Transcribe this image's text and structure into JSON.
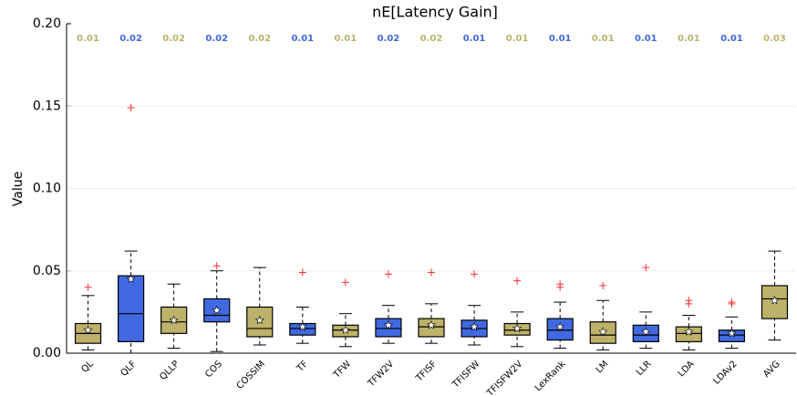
{
  "chart_data": {
    "type": "box",
    "title": "nE[Latency Gain]",
    "y_label": "Value",
    "ylim": [
      0,
      0.2
    ],
    "yticks": [
      {
        "value": 0,
        "label": "0.00"
      },
      0.05,
      {
        "value": 0.1,
        "label": "0.10"
      },
      0.15,
      {
        "value": 0.2,
        "label": "0.20"
      }
    ],
    "grid": true,
    "categories": [
      "QL",
      "QLF",
      "QLLP",
      "COS",
      "COSSIM",
      "TF",
      "TFW",
      "TFW2V",
      "TFISF",
      "TFISFW",
      "TFISFW2V",
      "LexRank",
      "LM",
      "LLR",
      "LDA",
      "LDAv2",
      "AVG"
    ],
    "boxes": [
      {
        "whislo": 0.002,
        "q1": 0.006,
        "med": 0.012,
        "q3": 0.018,
        "whishi": 0.035,
        "mean": 0.014,
        "fliers": [
          0.04
        ],
        "top_label": 0.01,
        "color": "#bdb26a"
      },
      {
        "whislo": 0.0,
        "q1": 0.007,
        "med": 0.024,
        "q3": 0.047,
        "whishi": 0.062,
        "mean": 0.045,
        "fliers": [
          0.149
        ],
        "top_label": 0.02,
        "color": "#4169e1"
      },
      {
        "whislo": 0.003,
        "q1": 0.012,
        "med": 0.019,
        "q3": 0.028,
        "whishi": 0.042,
        "mean": 0.02,
        "fliers": [],
        "top_label": 0.02,
        "color": "#bdb26a"
      },
      {
        "whislo": 0.001,
        "q1": 0.019,
        "med": 0.023,
        "q3": 0.033,
        "whishi": 0.05,
        "mean": 0.026,
        "fliers": [
          0.053
        ],
        "top_label": 0.02,
        "color": "#4169e1"
      },
      {
        "whislo": 0.005,
        "q1": 0.01,
        "med": 0.015,
        "q3": 0.028,
        "whishi": 0.052,
        "mean": 0.02,
        "fliers": [],
        "top_label": 0.02,
        "color": "#bdb26a"
      },
      {
        "whislo": 0.006,
        "q1": 0.011,
        "med": 0.015,
        "q3": 0.018,
        "whishi": 0.028,
        "mean": 0.016,
        "fliers": [
          0.049
        ],
        "top_label": 0.01,
        "color": "#4169e1"
      },
      {
        "whislo": 0.004,
        "q1": 0.01,
        "med": 0.014,
        "q3": 0.017,
        "whishi": 0.024,
        "mean": 0.014,
        "fliers": [
          0.043
        ],
        "top_label": 0.01,
        "color": "#bdb26a"
      },
      {
        "whislo": 0.006,
        "q1": 0.01,
        "med": 0.015,
        "q3": 0.021,
        "whishi": 0.029,
        "mean": 0.017,
        "fliers": [
          0.048
        ],
        "top_label": 0.02,
        "color": "#4169e1"
      },
      {
        "whislo": 0.006,
        "q1": 0.01,
        "med": 0.016,
        "q3": 0.021,
        "whishi": 0.03,
        "mean": 0.017,
        "fliers": [
          0.049
        ],
        "top_label": 0.02,
        "color": "#bdb26a"
      },
      {
        "whislo": 0.005,
        "q1": 0.01,
        "med": 0.015,
        "q3": 0.02,
        "whishi": 0.029,
        "mean": 0.016,
        "fliers": [
          0.048
        ],
        "top_label": 0.01,
        "color": "#4169e1"
      },
      {
        "whislo": 0.004,
        "q1": 0.011,
        "med": 0.014,
        "q3": 0.018,
        "whishi": 0.025,
        "mean": 0.015,
        "fliers": [
          0.044
        ],
        "top_label": 0.01,
        "color": "#bdb26a"
      },
      {
        "whislo": 0.003,
        "q1": 0.008,
        "med": 0.014,
        "q3": 0.021,
        "whishi": 0.031,
        "mean": 0.016,
        "fliers": [
          0.042,
          0.04
        ],
        "top_label": 0.01,
        "color": "#4169e1"
      },
      {
        "whislo": 0.002,
        "q1": 0.006,
        "med": 0.011,
        "q3": 0.019,
        "whishi": 0.032,
        "mean": 0.013,
        "fliers": [
          0.041
        ],
        "top_label": 0.01,
        "color": "#bdb26a"
      },
      {
        "whislo": 0.003,
        "q1": 0.007,
        "med": 0.011,
        "q3": 0.017,
        "whishi": 0.025,
        "mean": 0.013,
        "fliers": [
          0.052
        ],
        "top_label": 0.01,
        "color": "#4169e1"
      },
      {
        "whislo": 0.002,
        "q1": 0.007,
        "med": 0.012,
        "q3": 0.016,
        "whishi": 0.023,
        "mean": 0.013,
        "fliers": [
          0.032,
          0.03
        ],
        "top_label": 0.01,
        "color": "#bdb26a"
      },
      {
        "whislo": 0.003,
        "q1": 0.007,
        "med": 0.011,
        "q3": 0.014,
        "whishi": 0.022,
        "mean": 0.012,
        "fliers": [
          0.031,
          0.03
        ],
        "top_label": 0.01,
        "color": "#4169e1"
      },
      {
        "whislo": 0.008,
        "q1": 0.021,
        "med": 0.033,
        "q3": 0.041,
        "whishi": 0.062,
        "mean": 0.032,
        "fliers": [],
        "top_label": 0.03,
        "color": "#bdb26a"
      }
    ]
  }
}
